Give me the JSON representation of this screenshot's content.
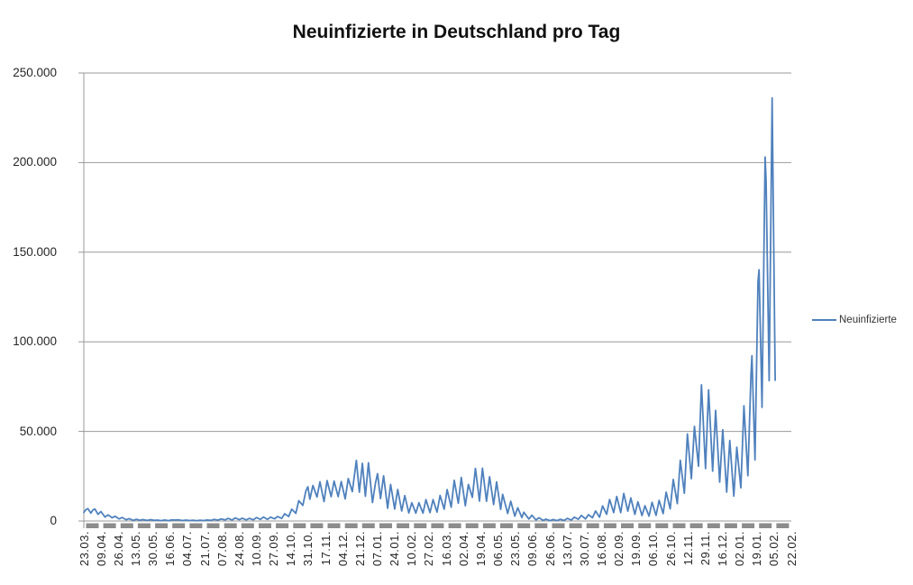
{
  "chart_data": {
    "type": "line",
    "title": "Neuinfizierte in Deutschland pro Tag",
    "grid": {
      "horizontal": true,
      "color": "#9a9a9a",
      "axis_color": "#9a9a9a",
      "tick_strip_color": "#8c8c8c"
    },
    "legend": {
      "position": "right",
      "entries": [
        "Neuinfizierte"
      ]
    },
    "y_axis": {
      "min": 0,
      "max": 250000,
      "step": 50000,
      "tick_values": [
        0,
        50000,
        100000,
        150000,
        200000,
        250000
      ],
      "tick_labels": [
        "0",
        "50.000",
        "100.000",
        "150.000",
        "200.000",
        "250.000"
      ]
    },
    "x_axis": {
      "start": "23.03.2020",
      "end": "22.02.2022",
      "label_rotation_deg": 90,
      "tick_labels": [
        "23.03.",
        "09.04.",
        "26.04.",
        "13.05.",
        "30.05.",
        "16.06.",
        "04.07.",
        "21.07.",
        "07.08.",
        "24.08.",
        "10.09.",
        "27.09.",
        "14.10.",
        "31.10.",
        "17.11.",
        "04.12.",
        "21.12.",
        "07.01.",
        "24.01.",
        "10.02.",
        "27.02.",
        "16.03.",
        "02.04.",
        "19.04.",
        "06.05.",
        "23.05.",
        "09.06.",
        "26.06.",
        "13.07.",
        "30.07.",
        "16.08.",
        "02.09.",
        "19.09.",
        "06.10.",
        "26.10.",
        "12.11.",
        "29.11.",
        "16.12.",
        "02.01.",
        "19.01.",
        "05.02.",
        "22.02."
      ]
    },
    "series": [
      {
        "name": "Neuinfizierte",
        "color": "#4F81BD",
        "points": [
          [
            "23.03.2020",
            4800
          ],
          [
            "25.03.2020",
            6300
          ],
          [
            "27.03.2020",
            6900
          ],
          [
            "30.03.2020",
            4450
          ],
          [
            "01.04.2020",
            6200
          ],
          [
            "03.04.2020",
            6700
          ],
          [
            "06.04.2020",
            3700
          ],
          [
            "09.04.2020",
            5300
          ],
          [
            "13.04.2020",
            2200
          ],
          [
            "16.04.2020",
            3400
          ],
          [
            "20.04.2020",
            1800
          ],
          [
            "23.04.2020",
            2650
          ],
          [
            "27.04.2020",
            1150
          ],
          [
            "30.04.2020",
            1950
          ],
          [
            "04.05.2020",
            680
          ],
          [
            "07.05.2020",
            1300
          ],
          [
            "11.05.2020",
            360
          ],
          [
            "14.05.2020",
            950
          ],
          [
            "18.05.2020",
            340
          ],
          [
            "20.05.2020",
            800
          ],
          [
            "25.05.2020",
            290
          ],
          [
            "28.05.2020",
            740
          ],
          [
            "01.06.2020",
            330
          ],
          [
            "04.06.2020",
            500
          ],
          [
            "08.06.2020",
            210
          ],
          [
            "11.06.2020",
            560
          ],
          [
            "15.06.2020",
            190
          ],
          [
            "18.06.2020",
            580
          ],
          [
            "22.06.2020",
            540
          ],
          [
            "24.06.2020",
            710
          ],
          [
            "29.06.2020",
            260
          ],
          [
            "02.07.2020",
            500
          ],
          [
            "06.07.2020",
            230
          ],
          [
            "09.07.2020",
            440
          ],
          [
            "13.07.2020",
            160
          ],
          [
            "16.07.2020",
            450
          ],
          [
            "20.07.2020",
            240
          ],
          [
            "23.07.2020",
            570
          ],
          [
            "27.07.2020",
            340
          ],
          [
            "30.07.2020",
            900
          ],
          [
            "03.08.2020",
            510
          ],
          [
            "06.08.2020",
            1150
          ],
          [
            "10.08.2020",
            600
          ],
          [
            "13.08.2020",
            1450
          ],
          [
            "17.08.2020",
            560
          ],
          [
            "20.08.2020",
            1700
          ],
          [
            "24.08.2020",
            700
          ],
          [
            "27.08.2020",
            1570
          ],
          [
            "31.08.2020",
            610
          ],
          [
            "03.09.2020",
            1450
          ],
          [
            "07.09.2020",
            630
          ],
          [
            "10.09.2020",
            1900
          ],
          [
            "14.09.2020",
            930
          ],
          [
            "17.09.2020",
            2200
          ],
          [
            "21.09.2020",
            920
          ],
          [
            "24.09.2020",
            2150
          ],
          [
            "28.09.2020",
            1200
          ],
          [
            "01.10.2020",
            2500
          ],
          [
            "05.10.2020",
            1400
          ],
          [
            "08.10.2020",
            4000
          ],
          [
            "12.10.2020",
            2500
          ],
          [
            "15.10.2020",
            6600
          ],
          [
            "19.10.2020",
            4300
          ],
          [
            "22.10.2020",
            11300
          ],
          [
            "26.10.2020",
            8700
          ],
          [
            "29.10.2020",
            16800
          ],
          [
            "31.10.2020",
            19100
          ],
          [
            "02.11.2020",
            12100
          ],
          [
            "05.11.2020",
            19800
          ],
          [
            "09.11.2020",
            13400
          ],
          [
            "12.11.2020",
            21900
          ],
          [
            "16.11.2020",
            10800
          ],
          [
            "19.11.2020",
            22600
          ],
          [
            "23.11.2020",
            13600
          ],
          [
            "26.11.2020",
            22300
          ],
          [
            "30.11.2020",
            13600
          ],
          [
            "03.12.2020",
            22000
          ],
          [
            "07.12.2020",
            12300
          ],
          [
            "10.12.2020",
            23700
          ],
          [
            "14.12.2020",
            16400
          ],
          [
            "18.12.2020",
            33800
          ],
          [
            "21.12.2020",
            16100
          ],
          [
            "24.12.2020",
            32200
          ],
          [
            "27.12.2020",
            13800
          ],
          [
            "30.12.2020",
            32500
          ],
          [
            "03.01.2021",
            10300
          ],
          [
            "06.01.2021",
            21200
          ],
          [
            "08.01.2021",
            26400
          ],
          [
            "11.01.2021",
            12500
          ],
          [
            "14.01.2021",
            25200
          ],
          [
            "18.01.2021",
            7100
          ],
          [
            "21.01.2021",
            20400
          ],
          [
            "25.01.2021",
            6700
          ],
          [
            "28.01.2021",
            17600
          ],
          [
            "01.02.2021",
            5600
          ],
          [
            "04.02.2021",
            14200
          ],
          [
            "08.02.2021",
            4500
          ],
          [
            "11.02.2021",
            10200
          ],
          [
            "15.02.2021",
            4400
          ],
          [
            "18.02.2021",
            10200
          ],
          [
            "22.02.2021",
            4400
          ],
          [
            "25.02.2021",
            11900
          ],
          [
            "01.03.2021",
            4700
          ],
          [
            "04.03.2021",
            11900
          ],
          [
            "08.03.2021",
            5000
          ],
          [
            "11.03.2021",
            14300
          ],
          [
            "15.03.2021",
            6600
          ],
          [
            "18.03.2021",
            17500
          ],
          [
            "22.03.2021",
            7700
          ],
          [
            "25.03.2021",
            22700
          ],
          [
            "29.03.2021",
            9900
          ],
          [
            "01.04.2021",
            24300
          ],
          [
            "05.04.2021",
            8500
          ],
          [
            "08.04.2021",
            20400
          ],
          [
            "12.04.2021",
            13200
          ],
          [
            "15.04.2021",
            29400
          ],
          [
            "19.04.2021",
            11100
          ],
          [
            "22.04.2021",
            29500
          ],
          [
            "26.04.2021",
            11000
          ],
          [
            "29.04.2021",
            24700
          ],
          [
            "03.05.2021",
            9200
          ],
          [
            "06.05.2021",
            21900
          ],
          [
            "10.05.2021",
            6500
          ],
          [
            "12.05.2021",
            14900
          ],
          [
            "17.05.2021",
            4200
          ],
          [
            "20.05.2021",
            11000
          ],
          [
            "24.05.2021",
            2700
          ],
          [
            "27.05.2021",
            7400
          ],
          [
            "31.05.2021",
            1900
          ],
          [
            "02.06.2021",
            4900
          ],
          [
            "07.06.2021",
            1100
          ],
          [
            "10.06.2021",
            3200
          ],
          [
            "14.06.2021",
            550
          ],
          [
            "17.06.2021",
            1800
          ],
          [
            "21.06.2021",
            350
          ],
          [
            "24.06.2021",
            1000
          ],
          [
            "28.06.2021",
            220
          ],
          [
            "01.07.2021",
            800
          ],
          [
            "05.07.2021",
            210
          ],
          [
            "08.07.2021",
            970
          ],
          [
            "12.07.2021",
            320
          ],
          [
            "15.07.2021",
            1450
          ],
          [
            "19.07.2021",
            550
          ],
          [
            "22.07.2021",
            2100
          ],
          [
            "26.07.2021",
            960
          ],
          [
            "29.07.2021",
            3100
          ],
          [
            "02.08.2021",
            1180
          ],
          [
            "05.08.2021",
            3500
          ],
          [
            "09.08.2021",
            1800
          ],
          [
            "12.08.2021",
            5600
          ],
          [
            "16.08.2021",
            2100
          ],
          [
            "19.08.2021",
            8400
          ],
          [
            "23.08.2021",
            3700
          ],
          [
            "26.08.2021",
            12000
          ],
          [
            "30.08.2021",
            4700
          ],
          [
            "02.09.2021",
            13700
          ],
          [
            "06.09.2021",
            4700
          ],
          [
            "09.09.2021",
            15400
          ],
          [
            "13.09.2021",
            5500
          ],
          [
            "16.09.2021",
            12900
          ],
          [
            "20.09.2021",
            3700
          ],
          [
            "23.09.2021",
            10700
          ],
          [
            "27.09.2021",
            3000
          ],
          [
            "30.09.2021",
            8500
          ],
          [
            "04.10.2021",
            2700
          ],
          [
            "07.10.2021",
            10400
          ],
          [
            "11.10.2021",
            3100
          ],
          [
            "14.10.2021",
            11500
          ],
          [
            "18.10.2021",
            4100
          ],
          [
            "21.10.2021",
            16100
          ],
          [
            "25.10.2021",
            6800
          ],
          [
            "28.10.2021",
            23200
          ],
          [
            "01.11.2021",
            9700
          ],
          [
            "04.11.2021",
            33900
          ],
          [
            "08.11.2021",
            15500
          ],
          [
            "11.11.2021",
            48600
          ],
          [
            "15.11.2021",
            23600
          ],
          [
            "18.11.2021",
            52800
          ],
          [
            "22.11.2021",
            30600
          ],
          [
            "25.11.2021",
            76000
          ],
          [
            "29.11.2021",
            29300
          ],
          [
            "02.12.2021",
            73200
          ],
          [
            "06.12.2021",
            27800
          ],
          [
            "09.12.2021",
            61700
          ],
          [
            "13.12.2021",
            21700
          ],
          [
            "16.12.2021",
            50900
          ],
          [
            "20.12.2021",
            16100
          ],
          [
            "23.12.2021",
            44900
          ],
          [
            "27.12.2021",
            13900
          ],
          [
            "30.12.2021",
            41200
          ],
          [
            "03.01.2022",
            18500
          ],
          [
            "06.01.2022",
            64300
          ],
          [
            "10.01.2022",
            25300
          ],
          [
            "13.01.2022",
            81400
          ],
          [
            "14.01.2022",
            92200
          ],
          [
            "17.01.2022",
            34100
          ],
          [
            "20.01.2022",
            133500
          ],
          [
            "21.01.2022",
            140200
          ],
          [
            "24.01.2022",
            63400
          ],
          [
            "27.01.2022",
            203100
          ],
          [
            "28.01.2022",
            190100
          ],
          [
            "31.01.2022",
            78300
          ],
          [
            "03.02.2022",
            236100
          ],
          [
            "06.02.2022",
            78500
          ]
        ]
      }
    ]
  }
}
